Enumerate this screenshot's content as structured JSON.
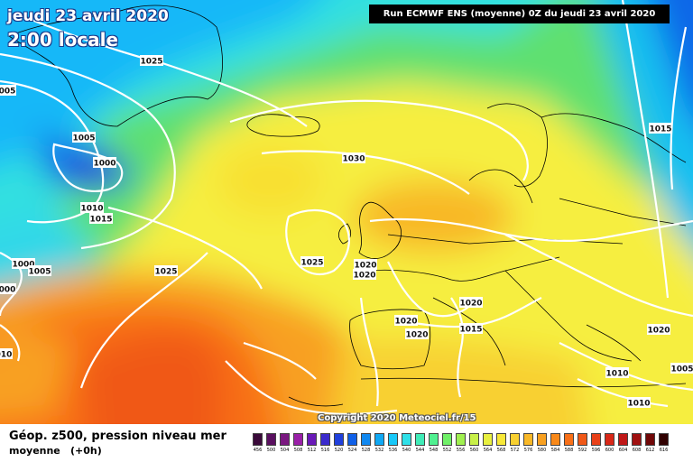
{
  "header": {
    "date": "jeudi 23 avril 2020",
    "time": "2:00 locale",
    "run": "Run ECMWF ENS (moyenne) 0Z du jeudi 23 avril 2020"
  },
  "copyright": "Copyright 2020 Meteociel.fr/15",
  "footer": {
    "title": "Géop. z500, pression niveau mer",
    "subtitle": "moyenne",
    "lead": "(+0h)"
  },
  "isobar_labels": [
    {
      "text": "1025"
    },
    {
      "text": "005"
    },
    {
      "text": "1005"
    },
    {
      "text": "1000"
    },
    {
      "text": "1010"
    },
    {
      "text": "1015"
    },
    {
      "text": "1000"
    },
    {
      "text": "1005"
    },
    {
      "text": "000"
    },
    {
      "text": "1025"
    },
    {
      "text": "1030"
    },
    {
      "text": "1025"
    },
    {
      "text": "1020"
    },
    {
      "text": "1020"
    },
    {
      "text": "1020"
    },
    {
      "text": "1020"
    },
    {
      "text": "1015"
    },
    {
      "text": "1020"
    },
    {
      "text": "1015"
    },
    {
      "text": "1020"
    },
    {
      "text": "1010"
    },
    {
      "text": "1005"
    },
    {
      "text": "1010"
    },
    {
      "text": "010"
    }
  ],
  "legend": {
    "values": [
      "456",
      "500",
      "504",
      "508",
      "512",
      "516",
      "520",
      "524",
      "528",
      "532",
      "536",
      "540",
      "544",
      "548",
      "552",
      "556",
      "560",
      "564",
      "568",
      "572",
      "576",
      "580",
      "584",
      "588",
      "592",
      "596",
      "600",
      "604",
      "608",
      "612",
      "616"
    ],
    "colors": [
      "#3a0a3a",
      "#5a1060",
      "#7a1880",
      "#9a20a8",
      "#6a1ab8",
      "#3a2acc",
      "#2040dc",
      "#1060e8",
      "#1088f0",
      "#10a8f4",
      "#18c8f8",
      "#30e0e8",
      "#40ecb8",
      "#50f090",
      "#70f068",
      "#a0f050",
      "#c8f048",
      "#e8f040",
      "#f8e838",
      "#f8d030",
      "#f8b828",
      "#f8a020",
      "#f88818",
      "#f87018",
      "#f05818",
      "#e84018",
      "#d82818",
      "#c01818",
      "#a01010",
      "#700808",
      "#300000"
    ]
  }
}
